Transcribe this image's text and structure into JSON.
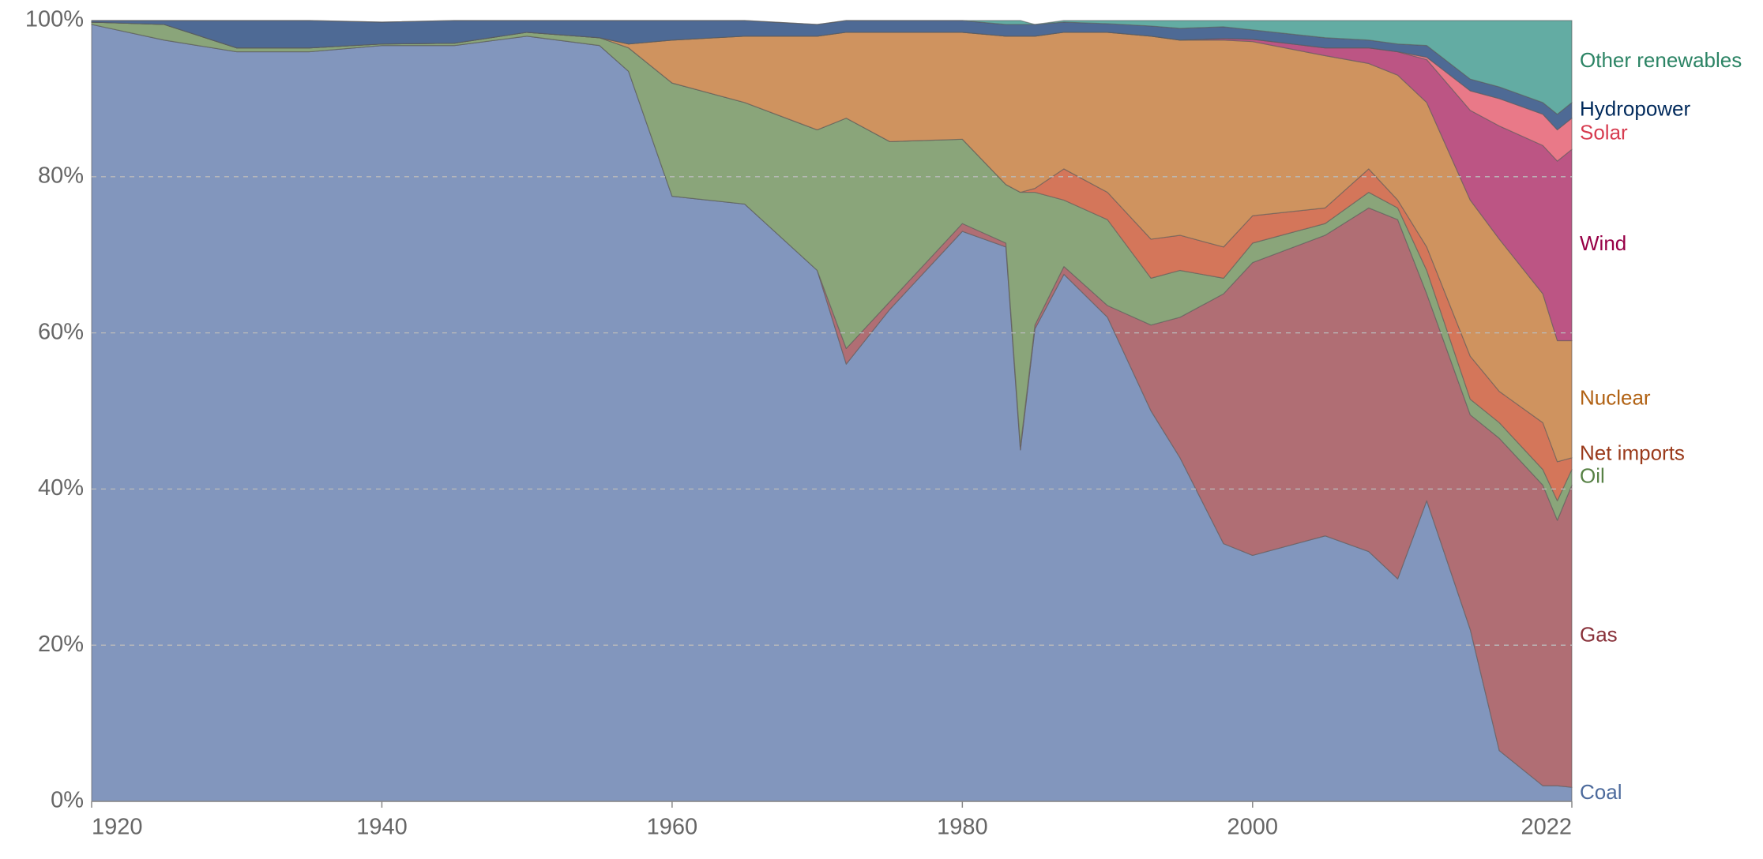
{
  "chart_data": {
    "type": "stacked_area",
    "x": [
      1920,
      1925,
      1930,
      1935,
      1940,
      1945,
      1950,
      1955,
      1957,
      1960,
      1965,
      1970,
      1972,
      1975,
      1980,
      1983,
      1984,
      1985,
      1987,
      1990,
      1993,
      1995,
      1998,
      2000,
      2005,
      2008,
      2010,
      2012,
      2015,
      2017,
      2020,
      2021,
      2022
    ],
    "xlim": [
      1920,
      2022
    ],
    "xticks": [
      1920,
      1940,
      1960,
      1980,
      2000,
      2022
    ],
    "ylim": [
      0,
      100
    ],
    "yticks": [
      {
        "value": 0,
        "label": "0%"
      },
      {
        "value": 20,
        "label": "20%"
      },
      {
        "value": 40,
        "label": "40%"
      },
      {
        "value": 60,
        "label": "60%"
      },
      {
        "value": 80,
        "label": "80%"
      },
      {
        "value": 100,
        "label": "100%"
      }
    ],
    "grid": true,
    "legend": "right",
    "series": [
      {
        "name": "Coal",
        "color": "#8296bd",
        "label_color": "#4c6a9c",
        "values": [
          99.5,
          97.5,
          96,
          96,
          96.8,
          96.8,
          98,
          96.8,
          93.5,
          77.5,
          76.5,
          68,
          56,
          63,
          73,
          71,
          45,
          60.5,
          67.5,
          62,
          50,
          44,
          33,
          31.5,
          34,
          32,
          28.5,
          38.5,
          22,
          6.5,
          2,
          2,
          1.8
        ]
      },
      {
        "name": "Gas",
        "color": "#b06e74",
        "label_color": "#883039",
        "values": [
          0,
          0,
          0,
          0,
          0,
          0,
          0,
          0,
          0,
          0,
          0,
          0,
          2,
          1,
          1,
          0.5,
          0.5,
          0.5,
          1,
          1.5,
          11,
          18,
          32,
          37.5,
          38.5,
          44,
          46,
          26.5,
          27.5,
          40,
          38.5,
          34,
          38.7
        ]
      },
      {
        "name": "Oil",
        "color": "#8aa57a",
        "label_color": "#578145",
        "values": [
          0.3,
          2,
          0.5,
          0.5,
          0.2,
          0.3,
          0.5,
          1,
          3,
          14.5,
          13,
          18,
          29.5,
          20.5,
          10.8,
          7.5,
          32.5,
          17,
          8.5,
          11,
          6,
          6,
          2,
          2.5,
          1.5,
          2,
          1.5,
          3,
          2,
          2,
          2,
          2.5,
          2
        ]
      },
      {
        "name": "Net imports",
        "color": "#d4765a",
        "label_color": "#9a3a1b",
        "values": [
          0,
          0,
          0,
          0,
          0,
          0,
          0,
          0,
          0,
          0,
          0,
          0,
          0,
          0,
          0,
          0,
          0,
          0.5,
          4,
          3.5,
          5,
          4.5,
          4,
          3.5,
          2,
          3,
          1,
          3,
          5.5,
          4,
          6,
          5,
          1.5
        ]
      },
      {
        "name": "Nuclear",
        "color": "#cf935f",
        "label_color": "#b16214",
        "values": [
          0,
          0,
          0,
          0,
          0,
          0,
          0,
          0,
          0.5,
          5.5,
          8.5,
          12,
          11,
          14,
          13.7,
          19,
          20,
          19.5,
          17.5,
          20.5,
          26,
          25,
          26.5,
          22.3,
          19.5,
          13.5,
          16,
          18.5,
          20,
          19.5,
          16.5,
          15.5,
          15
        ]
      },
      {
        "name": "Wind",
        "color": "#bc5584",
        "label_color": "#970046",
        "values": [
          0,
          0,
          0,
          0,
          0,
          0,
          0,
          0,
          0,
          0,
          0,
          0,
          0,
          0,
          0,
          0,
          0,
          0,
          0,
          0,
          0,
          0,
          0.2,
          0.3,
          1,
          2,
          3,
          5.5,
          11.5,
          14.5,
          19,
          23,
          24.5
        ]
      },
      {
        "name": "Solar",
        "color": "#e97988",
        "label_color": "#d73c50",
        "values": [
          0,
          0,
          0,
          0,
          0,
          0,
          0,
          0,
          0,
          0,
          0,
          0,
          0,
          0,
          0,
          0,
          0,
          0,
          0,
          0,
          0,
          0,
          0,
          0,
          0,
          0,
          0,
          0.3,
          2.5,
          3.5,
          4,
          4,
          4
        ]
      },
      {
        "name": "Hydropower",
        "color": "#4e6a95",
        "label_color": "#00295b",
        "values": [
          0.2,
          0.5,
          3.5,
          3.5,
          2.8,
          2.9,
          1.5,
          2.2,
          3,
          2.5,
          2,
          1.5,
          1.5,
          1.5,
          1.5,
          1.5,
          1.5,
          1.5,
          1.3,
          1.1,
          1.3,
          1.5,
          1.5,
          1.2,
          1.3,
          1,
          1,
          1.5,
          1.5,
          1.5,
          1.5,
          2,
          2
        ]
      },
      {
        "name": "Other renewables",
        "color": "#63aca3",
        "label_color": "#2c8465",
        "values": [
          0,
          0,
          0,
          0,
          0,
          0,
          0,
          0,
          0,
          0,
          0,
          0,
          0,
          0,
          0,
          0.5,
          0.5,
          0,
          0.2,
          0.4,
          0.7,
          1,
          0.8,
          1.2,
          2.2,
          2.5,
          3,
          3.2,
          7.5,
          8.5,
          10.5,
          12,
          10.5
        ]
      }
    ]
  }
}
